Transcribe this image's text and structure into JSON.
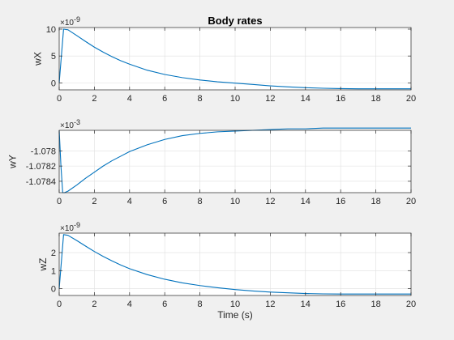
{
  "figure": {
    "title": "Body rates",
    "xlabel": "Time (s)"
  },
  "chart_data": [
    {
      "type": "line",
      "title": "Body rates",
      "xlabel": "",
      "ylabel": "wX",
      "exponent": {
        "base": "×10",
        "power": "-9"
      },
      "xlim": [
        0,
        20
      ],
      "ylim": [
        -1.3,
        10.3
      ],
      "xticks": [
        0,
        2,
        4,
        6,
        8,
        10,
        12,
        14,
        16,
        18,
        20
      ],
      "xtick_labels": [
        "0",
        "2",
        "4",
        "6",
        "8",
        "10",
        "12",
        "14",
        "16",
        "18",
        "20"
      ],
      "yticks": [
        0,
        5,
        10
      ],
      "ytick_labels": [
        "0",
        "5",
        "10"
      ],
      "grid": true,
      "color": "#0072bd",
      "series": [
        {
          "x": [
            0,
            0.25,
            0.5,
            1,
            1.5,
            2,
            2.5,
            3,
            3.5,
            4,
            5,
            6,
            7,
            8,
            9,
            10,
            11,
            12,
            13,
            14,
            15,
            16,
            17,
            18,
            19,
            20
          ],
          "values": [
            0,
            10.0,
            9.88,
            8.8,
            7.7,
            6.65,
            5.72,
            4.88,
            4.12,
            3.48,
            2.36,
            1.56,
            0.98,
            0.54,
            0.2,
            -0.05,
            -0.3,
            -0.55,
            -0.75,
            -0.9,
            -1.0,
            -1.07,
            -1.1,
            -1.1,
            -1.1,
            -1.1
          ]
        }
      ]
    },
    {
      "type": "line",
      "xlabel": "",
      "ylabel": "wY",
      "exponent": {
        "base": "×10",
        "power": "-3"
      },
      "xlim": [
        0,
        20
      ],
      "ylim": [
        -1.07855,
        -1.07773
      ],
      "xticks": [
        0,
        2,
        4,
        6,
        8,
        10,
        12,
        14,
        16,
        18,
        20
      ],
      "xtick_labels": [
        "0",
        "2",
        "4",
        "6",
        "8",
        "10",
        "12",
        "14",
        "16",
        "18",
        "20"
      ],
      "yticks": [
        -1.0784,
        -1.0782,
        -1.078
      ],
      "ytick_labels": [
        "-1.0784",
        "-1.0782",
        "-1.078"
      ],
      "grid": true,
      "color": "#0072bd",
      "series": [
        {
          "x": [
            0,
            0.1,
            0.2,
            0.3,
            0.5,
            1,
            1.5,
            2,
            2.5,
            3,
            3.5,
            4,
            5,
            6,
            7,
            8,
            9,
            10,
            11,
            12,
            13,
            14,
            15,
            16,
            17,
            18,
            19,
            20
          ],
          "values": [
            -1.07773,
            -1.0782,
            -1.07855,
            -1.07855,
            -1.07853,
            -1.07845,
            -1.07836,
            -1.07828,
            -1.0782,
            -1.07813,
            -1.07807,
            -1.07801,
            -1.07792,
            -1.07785,
            -1.0778,
            -1.07777,
            -1.07775,
            -1.07774,
            -1.07773,
            -1.07772,
            -1.07771,
            -1.07771,
            -1.0777,
            -1.0777,
            -1.0777,
            -1.0777,
            -1.0777,
            -1.0777
          ]
        }
      ]
    },
    {
      "type": "line",
      "xlabel": "Time (s)",
      "ylabel": "wZ",
      "exponent": {
        "base": "×10",
        "power": "-9"
      },
      "xlim": [
        0,
        20
      ],
      "ylim": [
        -0.38,
        3.08
      ],
      "xticks": [
        0,
        2,
        4,
        6,
        8,
        10,
        12,
        14,
        16,
        18,
        20
      ],
      "xtick_labels": [
        "0",
        "2",
        "4",
        "6",
        "8",
        "10",
        "12",
        "14",
        "16",
        "18",
        "20"
      ],
      "yticks": [
        0,
        1,
        2
      ],
      "ytick_labels": [
        "0",
        "1",
        "2"
      ],
      "grid": true,
      "color": "#0072bd",
      "series": [
        {
          "x": [
            0,
            0.25,
            0.5,
            1,
            1.5,
            2,
            2.5,
            3,
            3.5,
            4,
            5,
            6,
            7,
            8,
            9,
            10,
            11,
            12,
            13,
            14,
            15,
            16,
            17,
            18,
            19,
            20
          ],
          "values": [
            0,
            3.0,
            2.96,
            2.67,
            2.36,
            2.06,
            1.79,
            1.54,
            1.31,
            1.11,
            0.78,
            0.52,
            0.32,
            0.17,
            0.05,
            -0.05,
            -0.13,
            -0.19,
            -0.23,
            -0.27,
            -0.29,
            -0.3,
            -0.3,
            -0.3,
            -0.3,
            -0.3
          ]
        }
      ]
    }
  ]
}
